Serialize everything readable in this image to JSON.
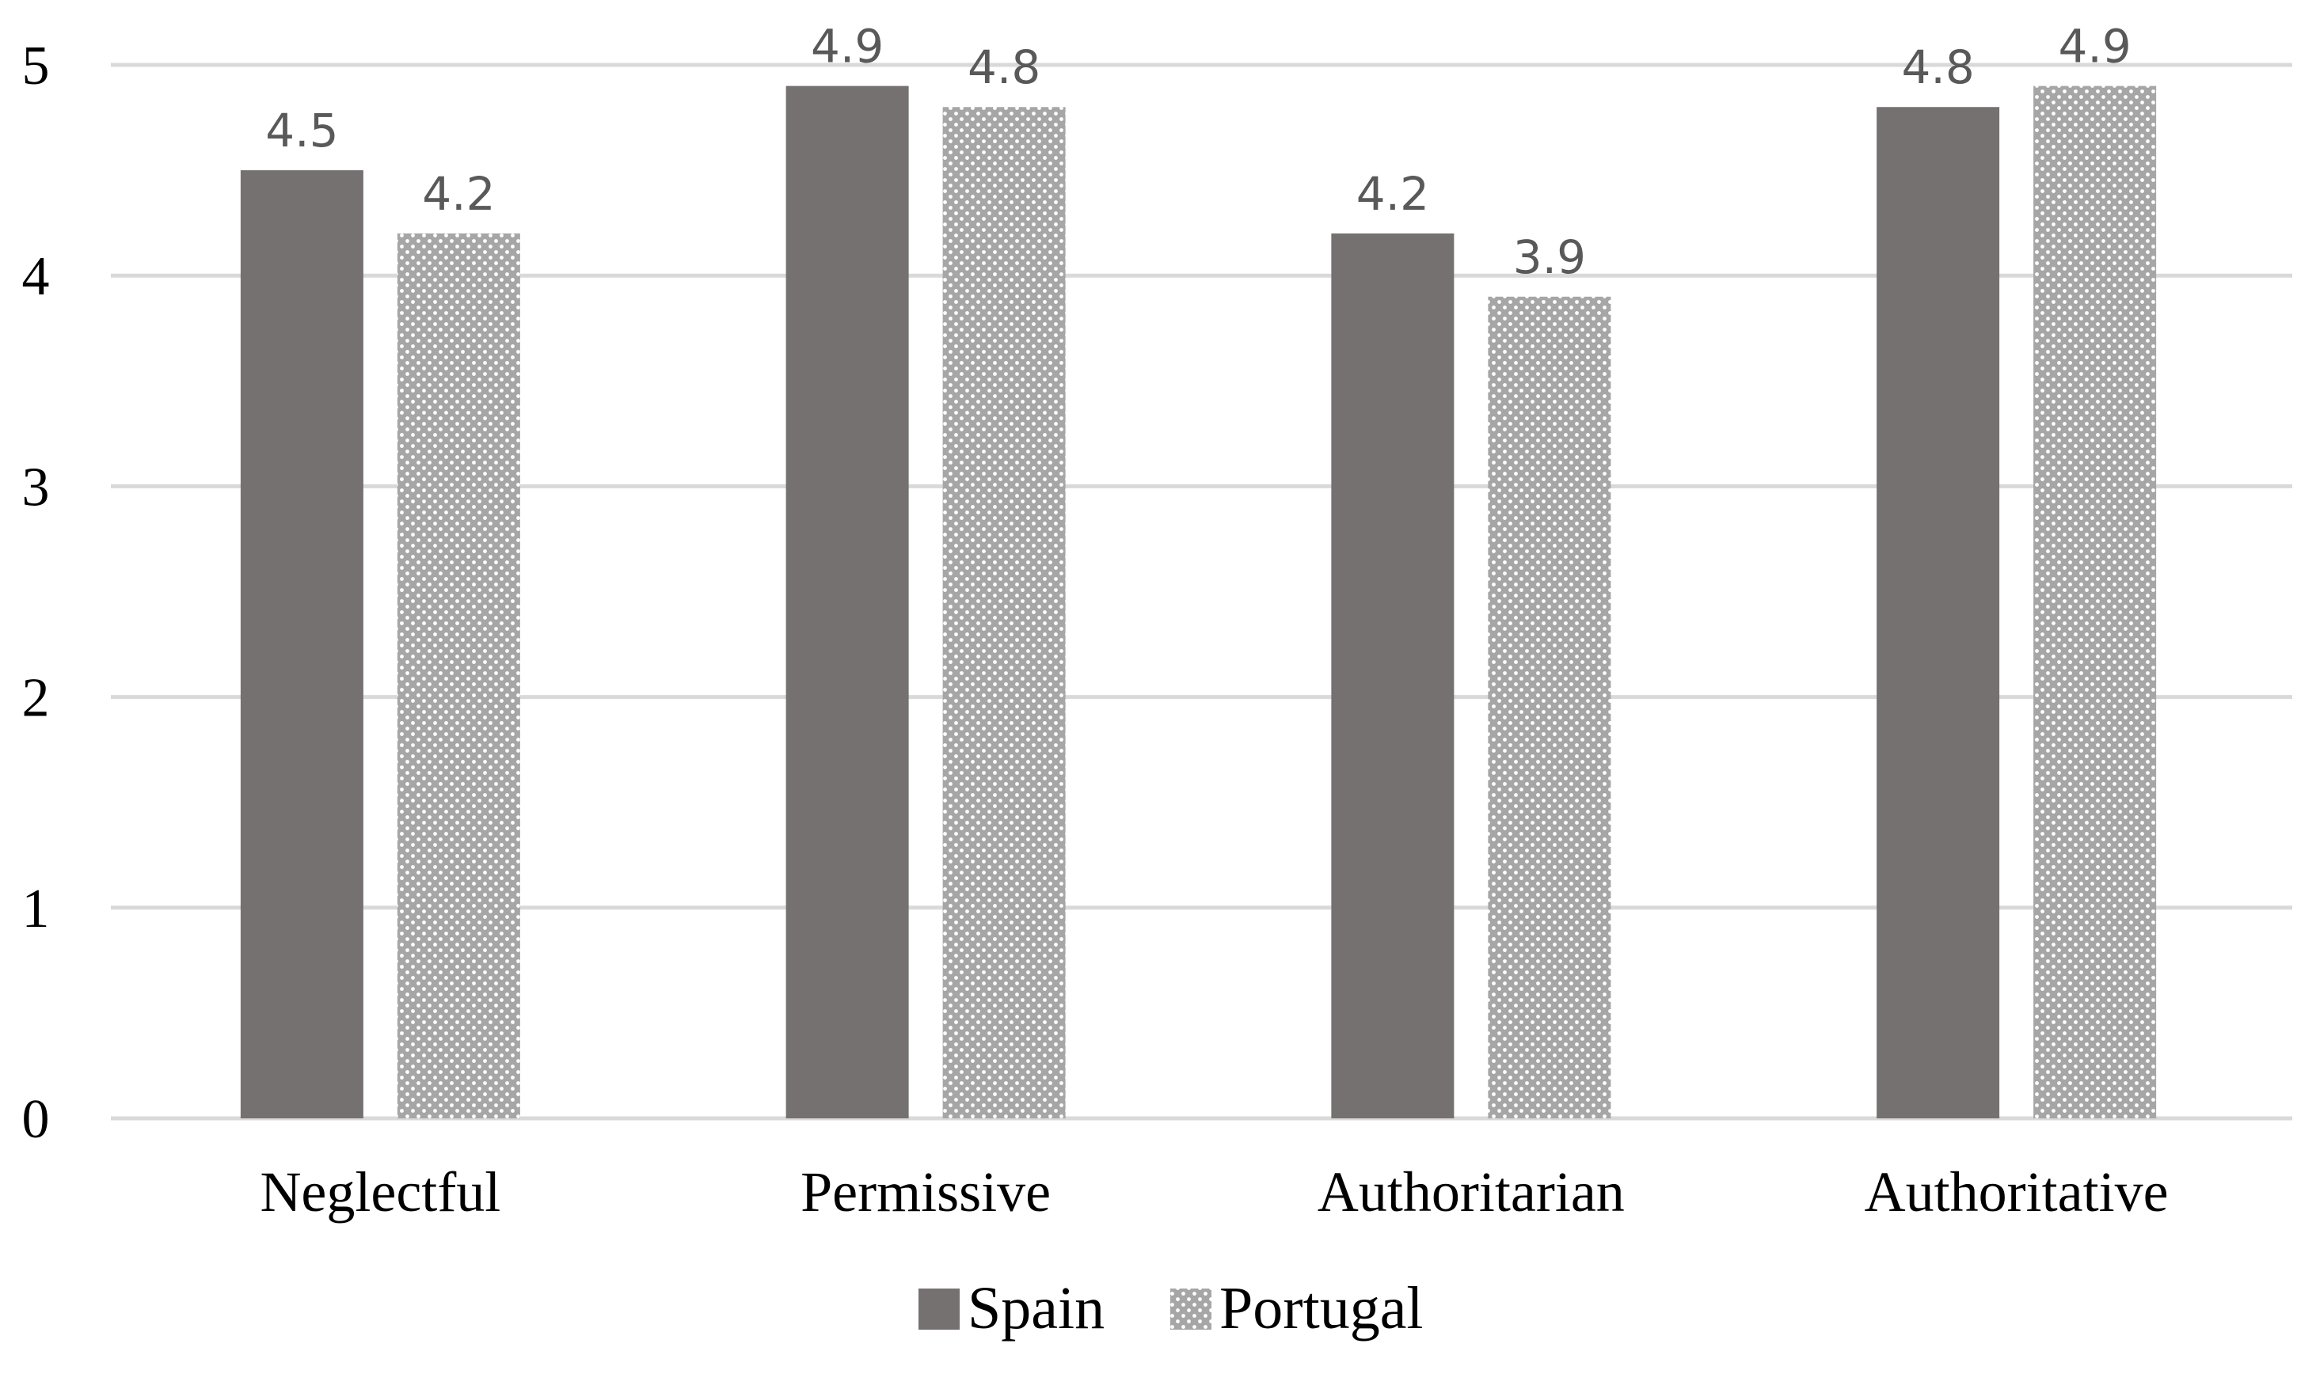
{
  "chart_data": {
    "type": "bar",
    "title": "",
    "xlabel": "",
    "ylabel": "",
    "categories": [
      "Neglectful",
      "Permissive",
      "Authoritarian",
      "Authoritative"
    ],
    "series": [
      {
        "name": "Spain",
        "values": [
          4.5,
          4.9,
          4.2,
          4.8
        ],
        "labels": [
          "4.5",
          "4.9",
          "4.2",
          "4.8"
        ],
        "color": "#767171",
        "pattern": "solid"
      },
      {
        "name": "Portugal",
        "values": [
          4.2,
          4.8,
          3.9,
          4.9
        ],
        "labels": [
          "4.2",
          "4.8",
          "3.9",
          "4.9"
        ],
        "color": "#a6a6a6",
        "pattern": "dotted"
      }
    ],
    "ylim": [
      0,
      5
    ],
    "yticks": [
      "0",
      "1",
      "2",
      "3",
      "4",
      "5"
    ],
    "grid": true,
    "legend_position": "bottom"
  },
  "colors": {
    "grid": "#d9d9d9",
    "spain": "#767171",
    "portugal": "#a6a6a6",
    "portugal_dots": "#ffffff",
    "data_label": "#595959"
  }
}
